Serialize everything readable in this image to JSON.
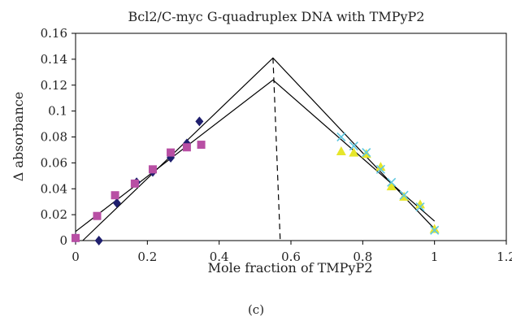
{
  "caption": "(c)",
  "chart_data": {
    "type": "scatter",
    "title": "Bcl2/C-myc G-quadruplex DNA with TMPyP2",
    "xlabel": "Mole fraction of TMPyP2",
    "ylabel": "Δ absorbance",
    "xlim": [
      0,
      1.2
    ],
    "ylim": [
      0,
      0.16
    ],
    "x_ticks": [
      "0",
      "0.2",
      "0.4",
      "0.6",
      "0.8",
      "1",
      "1.2"
    ],
    "y_ticks": [
      "0",
      "0.02",
      "0.04",
      "0.06",
      "0.08",
      "0.1",
      "0.12",
      "0.14",
      "0.16"
    ],
    "x_tick_values": [
      0,
      0.2,
      0.4,
      0.6,
      0.8,
      1,
      1.2
    ],
    "y_tick_values": [
      0,
      0.02,
      0.04,
      0.06,
      0.08,
      0.1,
      0.12,
      0.14,
      0.16
    ],
    "grid": false,
    "legend": "none",
    "series": [
      {
        "marker": "diamond",
        "color": "#1f1f6e",
        "points": [
          [
            0.0,
            0.002
          ],
          [
            0.065,
            0.0
          ],
          [
            0.115,
            0.029
          ],
          [
            0.17,
            0.045
          ],
          [
            0.215,
            0.053
          ],
          [
            0.265,
            0.064
          ],
          [
            0.31,
            0.075
          ],
          [
            0.345,
            0.092
          ]
        ]
      },
      {
        "marker": "square",
        "color": "#b84fa4",
        "points": [
          [
            0.0,
            0.002
          ],
          [
            0.06,
            0.019
          ],
          [
            0.11,
            0.035
          ],
          [
            0.165,
            0.044
          ],
          [
            0.215,
            0.055
          ],
          [
            0.265,
            0.068
          ],
          [
            0.31,
            0.072
          ],
          [
            0.35,
            0.074
          ]
        ]
      },
      {
        "marker": "triangle",
        "color": "#e6e62a",
        "points": [
          [
            0.74,
            0.069
          ],
          [
            0.775,
            0.068
          ],
          [
            0.81,
            0.067
          ],
          [
            0.85,
            0.057
          ],
          [
            0.88,
            0.042
          ],
          [
            0.915,
            0.034
          ],
          [
            0.96,
            0.028
          ],
          [
            1.0,
            0.009
          ]
        ]
      },
      {
        "marker": "x",
        "color": "#60c8e0",
        "points": [
          [
            0.74,
            0.08
          ],
          [
            0.775,
            0.073
          ],
          [
            0.81,
            0.068
          ],
          [
            0.85,
            0.055
          ],
          [
            0.88,
            0.045
          ],
          [
            0.915,
            0.035
          ],
          [
            0.96,
            0.026
          ],
          [
            1.0,
            0.008
          ]
        ]
      }
    ],
    "fit_lines": [
      {
        "style": "solid",
        "points": [
          [
            0.0,
            0.007
          ],
          [
            0.55,
            0.124
          ],
          [
            1.0,
            0.015
          ]
        ]
      },
      {
        "style": "solid",
        "points": [
          [
            0.02,
            0.0
          ],
          [
            0.55,
            0.141
          ],
          [
            1.0,
            0.009
          ]
        ]
      },
      {
        "style": "dashed",
        "points": [
          [
            0.55,
            0.141
          ],
          [
            0.57,
            0.0
          ]
        ]
      }
    ]
  }
}
